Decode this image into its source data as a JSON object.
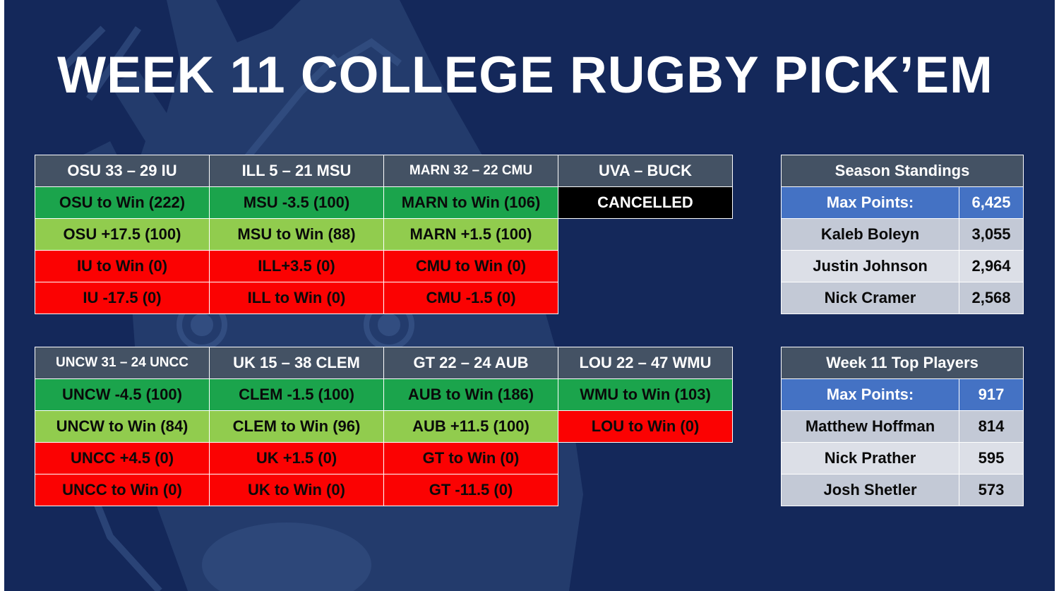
{
  "title": "WEEK 11 COLLEGE RUGBY PICK’EM",
  "games_top": [
    {
      "header": "OSU 33 – 29 IU",
      "picks": [
        {
          "text": "OSU to Win (222)",
          "color": "dark-green"
        },
        {
          "text": "OSU +17.5 (100)",
          "color": "light-green"
        },
        {
          "text": "IU to Win (0)",
          "color": "red"
        },
        {
          "text": "IU -17.5 (0)",
          "color": "red"
        }
      ]
    },
    {
      "header": "ILL 5 – 21 MSU",
      "picks": [
        {
          "text": "MSU -3.5 (100)",
          "color": "dark-green"
        },
        {
          "text": "MSU to Win (88)",
          "color": "light-green"
        },
        {
          "text": "ILL+3.5 (0)",
          "color": "red"
        },
        {
          "text": "ILL to Win (0)",
          "color": "red"
        }
      ]
    },
    {
      "header": "MARN 32 – 22 CMU",
      "picks": [
        {
          "text": "MARN to Win (106)",
          "color": "dark-green"
        },
        {
          "text": "MARN +1.5 (100)",
          "color": "light-green"
        },
        {
          "text": "CMU to Win (0)",
          "color": "red"
        },
        {
          "text": "CMU -1.5 (0)",
          "color": "red"
        }
      ]
    },
    {
      "header": "UVA – BUCK",
      "picks": [
        {
          "text": "CANCELLED",
          "color": "black"
        }
      ]
    }
  ],
  "games_bottom": [
    {
      "header": "UNCW 31 – 24 UNCC",
      "picks": [
        {
          "text": "UNCW -4.5 (100)",
          "color": "dark-green"
        },
        {
          "text": "UNCW to Win (84)",
          "color": "light-green"
        },
        {
          "text": "UNCC +4.5 (0)",
          "color": "red"
        },
        {
          "text": "UNCC to Win (0)",
          "color": "red"
        }
      ]
    },
    {
      "header": "UK 15 – 38 CLEM",
      "picks": [
        {
          "text": "CLEM -1.5 (100)",
          "color": "dark-green"
        },
        {
          "text": "CLEM to Win (96)",
          "color": "light-green"
        },
        {
          "text": "UK +1.5 (0)",
          "color": "red"
        },
        {
          "text": "UK to Win (0)",
          "color": "red"
        }
      ]
    },
    {
      "header": "GT 22 – 24 AUB",
      "picks": [
        {
          "text": "AUB to Win (186)",
          "color": "dark-green"
        },
        {
          "text": "AUB +11.5 (100)",
          "color": "light-green"
        },
        {
          "text": "GT to Win (0)",
          "color": "red"
        },
        {
          "text": "GT -11.5 (0)",
          "color": "red"
        }
      ]
    },
    {
      "header": "LOU 22 – 47 WMU",
      "picks": [
        {
          "text": "WMU to Win (103)",
          "color": "dark-green"
        },
        {
          "text": "LOU to Win (0)",
          "color": "red"
        }
      ]
    }
  ],
  "season_standings": {
    "title": "Season Standings",
    "max_label": "Max Points:",
    "max_value": "6,425",
    "rows": [
      {
        "name": "Kaleb Boleyn",
        "points": "3,055"
      },
      {
        "name": "Justin Johnson",
        "points": "2,964"
      },
      {
        "name": "Nick Cramer",
        "points": "2,568"
      }
    ]
  },
  "week_top": {
    "title": "Week 11 Top Players",
    "max_label": "Max Points:",
    "max_value": "917",
    "rows": [
      {
        "name": "Matthew Hoffman",
        "points": "814"
      },
      {
        "name": "Nick Prather",
        "points": "595"
      },
      {
        "name": "Josh Shetler",
        "points": "573"
      }
    ]
  },
  "colors": {
    "background": "#14285a",
    "header": "#445264",
    "dark_green": "#1ba44c",
    "light_green": "#91cc4e",
    "red": "#fb0202",
    "max_blue": "#4472c4",
    "row_gray": "#c3c9d6",
    "row_light_gray": "#dcdfe7"
  }
}
